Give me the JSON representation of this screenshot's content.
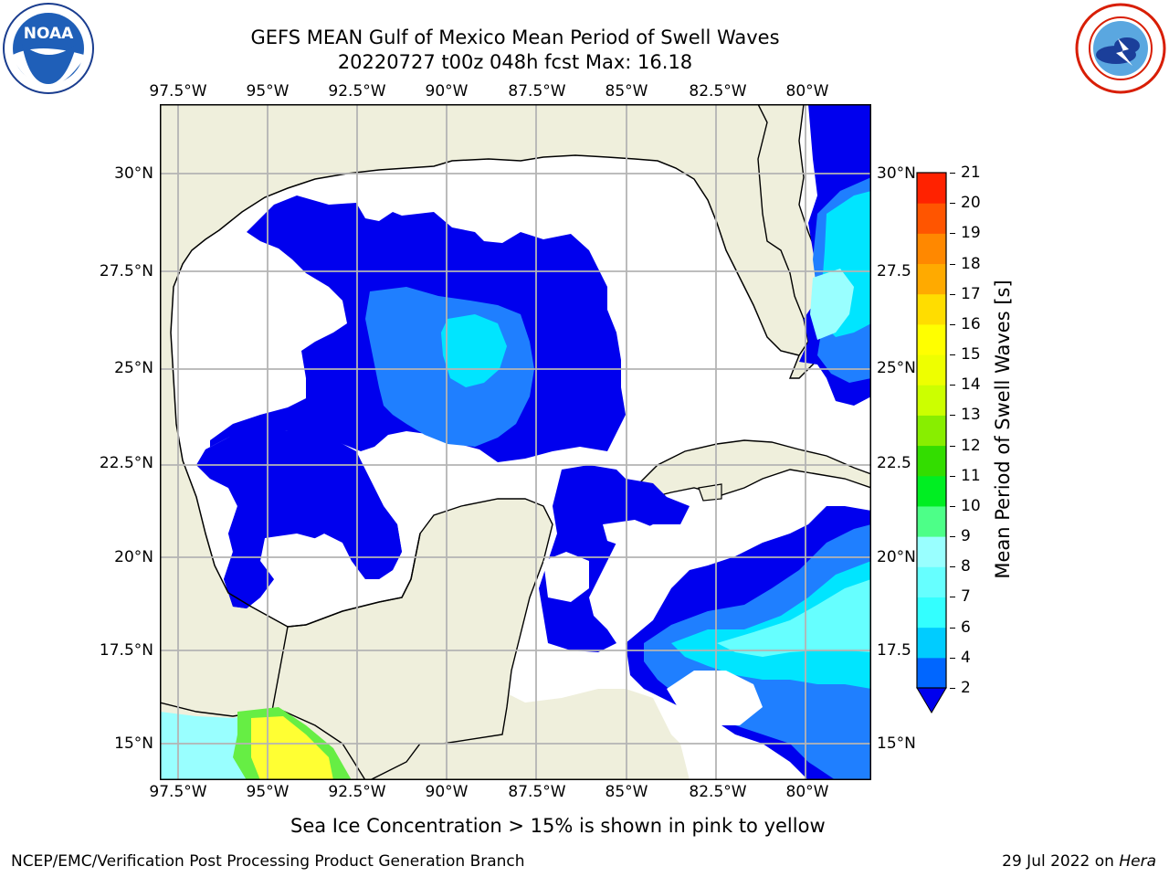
{
  "header": {
    "title_line1": "GEFS MEAN Gulf of Mexico Mean Period of Swell Waves",
    "title_line2": "20220727 t00z 048h fcst   Max: 16.18"
  },
  "logos": {
    "left": {
      "text": "NOAA",
      "icon": "noaa-logo-icon"
    },
    "right": {
      "icon": "nws-logo-icon"
    }
  },
  "map": {
    "lon_ticks": [
      "97.5°W",
      "95°W",
      "92.5°W",
      "90°W",
      "87.5°W",
      "85°W",
      "82.5°W",
      "80°W"
    ],
    "lat_ticks": [
      "30°N",
      "27.5°N",
      "25°N",
      "22.5°N",
      "20°N",
      "17.5°N",
      "15°N"
    ],
    "lat_ticks_right": [
      "30°N",
      "27.5",
      "25°N",
      "22.5",
      "20°N",
      "17.5",
      "15°N"
    ],
    "colors": {
      "land": "#efefdc",
      "water": "#ffffff",
      "grid": "#b4b4b4"
    }
  },
  "colorbar": {
    "label": "Mean Period of Swell Waves [s]",
    "ticks": [
      "2",
      "4",
      "6",
      "7",
      "8",
      "9",
      "10",
      "11",
      "12",
      "13",
      "14",
      "15",
      "16",
      "17",
      "18",
      "19",
      "20",
      "21"
    ],
    "colors": [
      "#0066ff",
      "#00ccff",
      "#33ffff",
      "#66ffff",
      "#99ffff",
      "#4dff88",
      "#00ee22",
      "#33dd00",
      "#88ee00",
      "#ccff00",
      "#eeff00",
      "#ffff00",
      "#ffdd00",
      "#ffaa00",
      "#ff8800",
      "#ff5500",
      "#ff2200",
      "#ff0000"
    ],
    "under_color": "#0000ee"
  },
  "notes": {
    "sea_ice": "Sea Ice Concentration > 15% is shown in pink to yellow"
  },
  "footer": {
    "left": "NCEP/EMC/Verification Post Processing Product Generation Branch",
    "right_date": "29 Jul 2022 on ",
    "right_host": "Hera"
  }
}
